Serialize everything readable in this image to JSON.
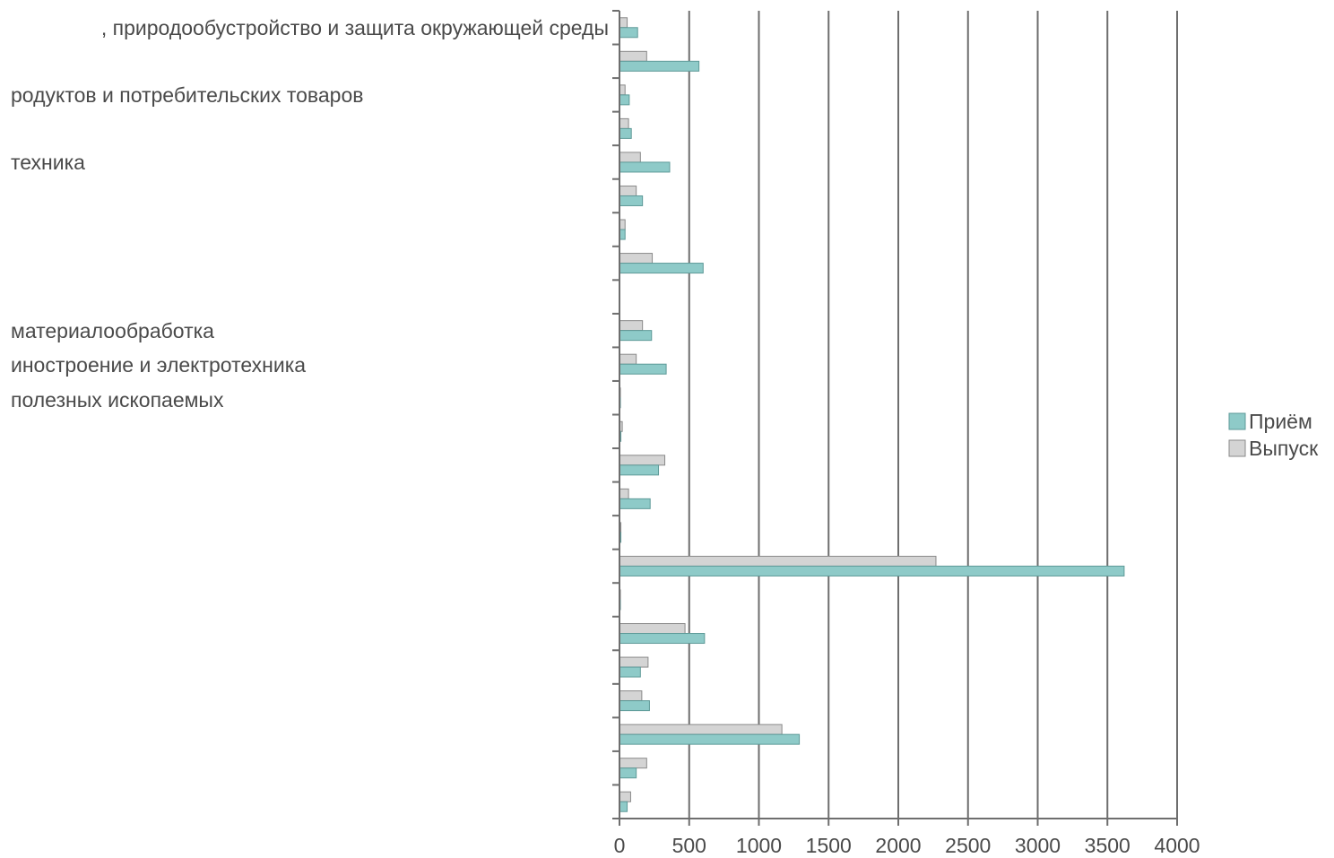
{
  "chart_data": {
    "type": "bar",
    "orientation": "horizontal",
    "categories": [
      "…, природообустройство и защита окружающей среды",
      "",
      "…родуктов и потребительских товаров",
      "",
      "…техника",
      "",
      "",
      "",
      "",
      "…материалообработка",
      "…иностроение и электротехника",
      "…полезных ископаемых",
      "",
      "",
      "",
      "",
      "",
      "",
      "",
      "",
      "",
      "",
      "",
      ""
    ],
    "category_label_texts": {
      "0": ", природообустройство и защита окружающей среды",
      "2": "родуктов и потребительских товаров",
      "4": "техника",
      "9": "материалообработка",
      "10": "иностроение и электротехника",
      "11": "полезных ископаемых"
    },
    "series": [
      {
        "name": "Приём",
        "color": "#8ecac8",
        "values": [
          130,
          570,
          70,
          85,
          360,
          165,
          40,
          600,
          0,
          230,
          335,
          5,
          10,
          280,
          220,
          10,
          3620,
          5,
          610,
          150,
          215,
          1290,
          120,
          55
        ]
      },
      {
        "name": "Выпуск",
        "color": "#d4d4d4",
        "values": [
          55,
          195,
          40,
          65,
          150,
          120,
          40,
          235,
          0,
          165,
          120,
          5,
          20,
          325,
          65,
          10,
          2270,
          5,
          470,
          205,
          160,
          1165,
          195,
          80
        ]
      }
    ],
    "xlim": [
      0,
      4000
    ],
    "xticks": [
      "0",
      "500",
      "1000",
      "1500",
      "2000",
      "2500",
      "3000",
      "3500",
      "4000"
    ],
    "grid": "vertical",
    "legend": "right",
    "title": "",
    "xlabel": "",
    "ylabel": ""
  }
}
